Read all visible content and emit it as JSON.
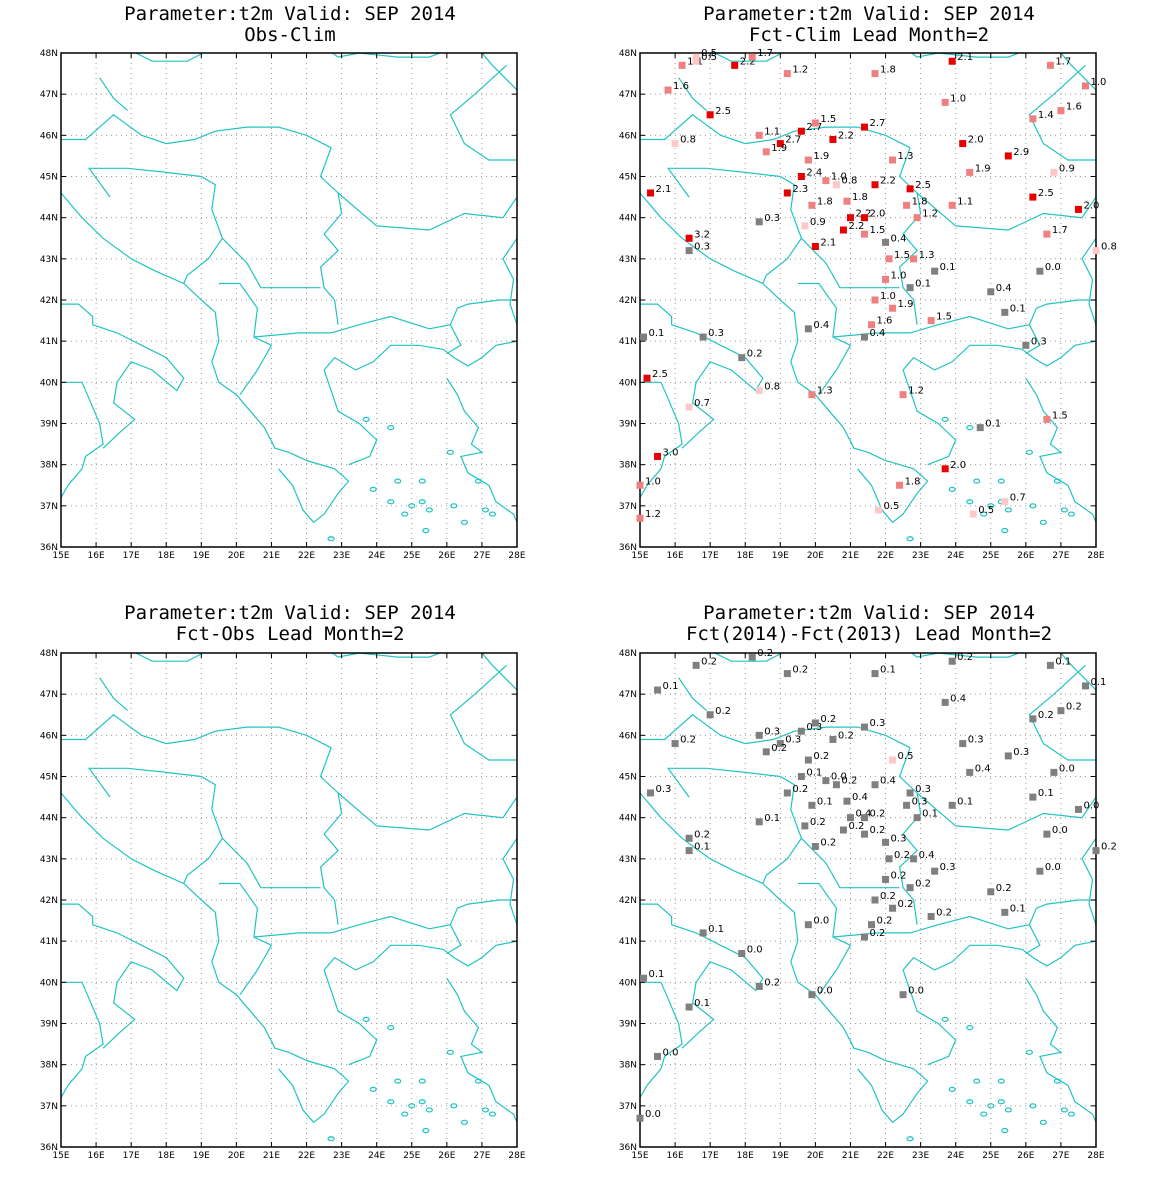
{
  "axes": {
    "lon_labels": [
      "15E",
      "16E",
      "17E",
      "18E",
      "19E",
      "20E",
      "21E",
      "22E",
      "23E",
      "24E",
      "25E",
      "26E",
      "27E",
      "28E"
    ],
    "lat_labels": [
      "36N",
      "37N",
      "38N",
      "39N",
      "40N",
      "41N",
      "42N",
      "43N",
      "44N",
      "45N",
      "46N",
      "47N",
      "48N"
    ],
    "lon_range": [
      15,
      28
    ],
    "lat_range": [
      36,
      48
    ]
  },
  "colors": {
    "coast": "#22c3c3",
    "grid": "#9a9a9a",
    "neutral": "#7f7f7f",
    "warm": [
      "#ffc8c8",
      "#f08080",
      "#e80000"
    ],
    "cool": [
      "#c8c8ff",
      "#8080f0",
      "#0000e0"
    ]
  },
  "panels": [
    {
      "title1": "Parameter:t2m Valid: SEP 2014",
      "title2": "Obs-Clim",
      "stations": []
    },
    {
      "title1": "Parameter:t2m Valid: SEP 2014",
      "title2": "Fct-Clim Lead Month=2",
      "stations": [
        {
          "lon": 16.2,
          "lat": 47.7,
          "label": "1.1"
        },
        {
          "lon": 16.6,
          "lat": 47.8,
          "label": "0.5"
        },
        {
          "lon": 16.6,
          "lat": 47.9,
          "label": "0.5"
        },
        {
          "lon": 17.7,
          "lat": 47.7,
          "label": "2.2"
        },
        {
          "lon": 18.2,
          "lat": 47.9,
          "label": "1.7"
        },
        {
          "lon": 19.2,
          "lat": 47.5,
          "label": "1.2"
        },
        {
          "lon": 21.7,
          "lat": 47.5,
          "label": "1.8"
        },
        {
          "lon": 23.9,
          "lat": 47.8,
          "label": "2.1"
        },
        {
          "lon": 26.7,
          "lat": 47.7,
          "label": "1.7"
        },
        {
          "lon": 27.7,
          "lat": 47.2,
          "label": "1.0"
        },
        {
          "lon": 15.8,
          "lat": 47.1,
          "label": "1.6"
        },
        {
          "lon": 23.7,
          "lat": 46.8,
          "label": "1.0"
        },
        {
          "lon": 17.0,
          "lat": 46.5,
          "label": "2.5"
        },
        {
          "lon": 27.0,
          "lat": 46.6,
          "label": "1.6"
        },
        {
          "lon": 26.2,
          "lat": 46.4,
          "label": "1.4"
        },
        {
          "lon": 18.4,
          "lat": 46.0,
          "label": "1.1"
        },
        {
          "lon": 19.6,
          "lat": 46.1,
          "label": "2.7"
        },
        {
          "lon": 20.0,
          "lat": 46.3,
          "label": "1.5"
        },
        {
          "lon": 21.4,
          "lat": 46.2,
          "label": "2.7"
        },
        {
          "lon": 20.5,
          "lat": 45.9,
          "label": "2.2"
        },
        {
          "lon": 16.0,
          "lat": 45.8,
          "label": "0.8"
        },
        {
          "lon": 19.0,
          "lat": 45.8,
          "label": "2.7"
        },
        {
          "lon": 18.6,
          "lat": 45.6,
          "label": "1.9"
        },
        {
          "lon": 24.2,
          "lat": 45.8,
          "label": "2.0"
        },
        {
          "lon": 19.8,
          "lat": 45.4,
          "label": "1.9"
        },
        {
          "lon": 22.2,
          "lat": 45.4,
          "label": "1.3"
        },
        {
          "lon": 25.5,
          "lat": 45.5,
          "label": "2.9"
        },
        {
          "lon": 24.4,
          "lat": 45.1,
          "label": "1.9"
        },
        {
          "lon": 26.8,
          "lat": 45.1,
          "label": "0.9"
        },
        {
          "lon": 19.6,
          "lat": 45.0,
          "label": "2.4"
        },
        {
          "lon": 20.3,
          "lat": 44.9,
          "label": "1.0"
        },
        {
          "lon": 20.6,
          "lat": 44.8,
          "label": "0.8"
        },
        {
          "lon": 21.7,
          "lat": 44.8,
          "label": "2.2"
        },
        {
          "lon": 15.3,
          "lat": 44.6,
          "label": "2.1"
        },
        {
          "lon": 19.2,
          "lat": 44.6,
          "label": "2.3"
        },
        {
          "lon": 20.9,
          "lat": 44.4,
          "label": "1.8"
        },
        {
          "lon": 19.9,
          "lat": 44.3,
          "label": "1.8"
        },
        {
          "lon": 22.6,
          "lat": 44.3,
          "label": "1.8"
        },
        {
          "lon": 26.2,
          "lat": 44.5,
          "label": "2.5"
        },
        {
          "lon": 23.9,
          "lat": 44.3,
          "label": "1.1"
        },
        {
          "lon": 27.5,
          "lat": 44.2,
          "label": "2.0"
        },
        {
          "lon": 21.0,
          "lat": 44.0,
          "label": "2.2"
        },
        {
          "lon": 21.4,
          "lat": 44.0,
          "label": "2.0"
        },
        {
          "lon": 22.9,
          "lat": 44.0,
          "label": "1.2"
        },
        {
          "lon": 20.8,
          "lat": 43.7,
          "label": "2.2"
        },
        {
          "lon": 21.4,
          "lat": 43.6,
          "label": "1.5"
        },
        {
          "lon": 19.7,
          "lat": 43.8,
          "label": "0.9"
        },
        {
          "lon": 26.6,
          "lat": 43.6,
          "label": "1.7"
        },
        {
          "lon": 20.0,
          "lat": 43.3,
          "label": "2.1"
        },
        {
          "lon": 22.1,
          "lat": 43.0,
          "label": "1.5"
        },
        {
          "lon": 22.8,
          "lat": 43.0,
          "label": "1.3"
        },
        {
          "lon": 28.0,
          "lat": 43.2,
          "label": "0.8"
        },
        {
          "lon": 22.0,
          "lat": 42.5,
          "label": "1.0"
        },
        {
          "lon": 22.7,
          "lat": 44.7,
          "label": "2.5"
        },
        {
          "lon": 16.4,
          "lat": 43.5,
          "label": "3.2"
        },
        {
          "lon": 21.7,
          "lat": 42.0,
          "label": "1.0"
        },
        {
          "lon": 22.2,
          "lat": 41.8,
          "label": "1.9"
        },
        {
          "lon": 21.6,
          "lat": 41.4,
          "label": "1.6"
        },
        {
          "lon": 23.3,
          "lat": 41.5,
          "label": "1.5"
        },
        {
          "lon": 15.2,
          "lat": 40.1,
          "label": "2.5"
        },
        {
          "lon": 16.4,
          "lat": 39.4,
          "label": "0.7"
        },
        {
          "lon": 18.4,
          "lat": 39.8,
          "label": "0.8"
        },
        {
          "lon": 19.9,
          "lat": 39.7,
          "label": "1.3"
        },
        {
          "lon": 22.5,
          "lat": 39.7,
          "label": "1.2"
        },
        {
          "lon": 26.6,
          "lat": 39.1,
          "label": "1.5"
        },
        {
          "lon": 15.5,
          "lat": 38.2,
          "label": "3.0"
        },
        {
          "lon": 23.7,
          "lat": 37.9,
          "label": "2.0"
        },
        {
          "lon": 15.0,
          "lat": 37.5,
          "label": "1.0"
        },
        {
          "lon": 22.4,
          "lat": 37.5,
          "label": "1.8"
        },
        {
          "lon": 15.0,
          "lat": 36.7,
          "label": "1.2"
        },
        {
          "lon": 21.8,
          "lat": 36.9,
          "label": "0.5"
        },
        {
          "lon": 24.5,
          "lat": 36.8,
          "label": "0.5"
        },
        {
          "lon": 25.4,
          "lat": 37.1,
          "label": "0.7"
        },
        {
          "lon": 18.4,
          "lat": 43.9,
          "label": "0.3"
        },
        {
          "lon": 16.4,
          "lat": 43.2,
          "label": "0.3"
        },
        {
          "lon": 22.0,
          "lat": 43.4,
          "label": "0.4"
        },
        {
          "lon": 23.4,
          "lat": 42.7,
          "label": "0.1"
        },
        {
          "lon": 26.4,
          "lat": 42.7,
          "label": "0.0"
        },
        {
          "lon": 22.7,
          "lat": 42.3,
          "label": "0.1"
        },
        {
          "lon": 25.0,
          "lat": 42.2,
          "label": "0.4"
        },
        {
          "lon": 25.4,
          "lat": 41.7,
          "label": "0.1"
        },
        {
          "lon": 19.8,
          "lat": 41.3,
          "label": "0.4"
        },
        {
          "lon": 21.4,
          "lat": 41.1,
          "label": "0.4"
        },
        {
          "lon": 15.1,
          "lat": 41.1,
          "label": "0.1"
        },
        {
          "lon": 16.8,
          "lat": 41.1,
          "label": "0.3"
        },
        {
          "lon": 17.9,
          "lat": 40.6,
          "label": "0.2"
        },
        {
          "lon": 26.0,
          "lat": 40.9,
          "label": "0.3"
        },
        {
          "lon": 24.7,
          "lat": 38.9,
          "label": "0.1"
        }
      ]
    },
    {
      "title1": "Parameter:t2m Valid: SEP 2014",
      "title2": "Fct-Obs Lead Month=2",
      "stations": []
    },
    {
      "title1": "Parameter:t2m Valid: SEP 2014",
      "title2": "Fct(2014)-Fct(2013) Lead Month=2",
      "stations": [
        {
          "lon": 16.6,
          "lat": 47.7,
          "label": "0.2"
        },
        {
          "lon": 18.2,
          "lat": 47.9,
          "label": "0.2"
        },
        {
          "lon": 19.2,
          "lat": 47.5,
          "label": "0.2"
        },
        {
          "lon": 21.7,
          "lat": 47.5,
          "label": "0.1"
        },
        {
          "lon": 23.9,
          "lat": 47.8,
          "label": "0.2"
        },
        {
          "lon": 26.7,
          "lat": 47.7,
          "label": "0.1"
        },
        {
          "lon": 27.7,
          "lat": 47.2,
          "label": "0.1"
        },
        {
          "lon": 15.5,
          "lat": 47.1,
          "label": "0.1"
        },
        {
          "lon": 23.7,
          "lat": 46.8,
          "label": "0.4"
        },
        {
          "lon": 17.0,
          "lat": 46.5,
          "label": "0.2"
        },
        {
          "lon": 26.2,
          "lat": 46.4,
          "label": "0.2"
        },
        {
          "lon": 27.0,
          "lat": 46.6,
          "label": "0.2"
        },
        {
          "lon": 18.4,
          "lat": 46.0,
          "label": "0.3"
        },
        {
          "lon": 19.6,
          "lat": 46.1,
          "label": "0.3"
        },
        {
          "lon": 20.0,
          "lat": 46.3,
          "label": "0.2"
        },
        {
          "lon": 21.4,
          "lat": 46.2,
          "label": "0.3"
        },
        {
          "lon": 20.5,
          "lat": 45.9,
          "label": "0.2"
        },
        {
          "lon": 16.0,
          "lat": 45.8,
          "label": "0.2"
        },
        {
          "lon": 19.0,
          "lat": 45.8,
          "label": "0.3"
        },
        {
          "lon": 18.6,
          "lat": 45.6,
          "label": "0.2"
        },
        {
          "lon": 24.2,
          "lat": 45.8,
          "label": "0.3"
        },
        {
          "lon": 19.8,
          "lat": 45.4,
          "label": "0.2"
        },
        {
          "lon": 22.2,
          "lat": 45.4,
          "label": "0.5"
        },
        {
          "lon": 25.5,
          "lat": 45.5,
          "label": "0.3"
        },
        {
          "lon": 24.4,
          "lat": 45.1,
          "label": "0.4"
        },
        {
          "lon": 26.8,
          "lat": 45.1,
          "label": "0.0"
        },
        {
          "lon": 19.6,
          "lat": 45.0,
          "label": "0.1"
        },
        {
          "lon": 20.3,
          "lat": 44.9,
          "label": "0.0"
        },
        {
          "lon": 20.6,
          "lat": 44.8,
          "label": "0.2"
        },
        {
          "lon": 21.7,
          "lat": 44.8,
          "label": "0.4"
        },
        {
          "lon": 22.7,
          "lat": 44.6,
          "label": "0.3"
        },
        {
          "lon": 15.3,
          "lat": 44.6,
          "label": "0.3"
        },
        {
          "lon": 19.2,
          "lat": 44.6,
          "label": "0.2"
        },
        {
          "lon": 20.9,
          "lat": 44.4,
          "label": "0.4"
        },
        {
          "lon": 19.9,
          "lat": 44.3,
          "label": "0.1"
        },
        {
          "lon": 22.6,
          "lat": 44.3,
          "label": "0.3"
        },
        {
          "lon": 26.2,
          "lat": 44.5,
          "label": "0.1"
        },
        {
          "lon": 23.9,
          "lat": 44.3,
          "label": "0.1"
        },
        {
          "lon": 27.5,
          "lat": 44.2,
          "label": "0.0"
        },
        {
          "lon": 21.0,
          "lat": 44.0,
          "label": "0.4"
        },
        {
          "lon": 21.4,
          "lat": 44.0,
          "label": "0.2"
        },
        {
          "lon": 22.9,
          "lat": 44.0,
          "label": "0.1"
        },
        {
          "lon": 18.4,
          "lat": 43.9,
          "label": "0.1"
        },
        {
          "lon": 19.7,
          "lat": 43.8,
          "label": "0.2"
        },
        {
          "lon": 20.8,
          "lat": 43.7,
          "label": "0.2"
        },
        {
          "lon": 21.4,
          "lat": 43.6,
          "label": "0.2"
        },
        {
          "lon": 16.4,
          "lat": 43.5,
          "label": "0.2"
        },
        {
          "lon": 26.6,
          "lat": 43.6,
          "label": "0.0"
        },
        {
          "lon": 22.0,
          "lat": 43.4,
          "label": "0.3"
        },
        {
          "lon": 16.4,
          "lat": 43.2,
          "label": "0.1"
        },
        {
          "lon": 20.0,
          "lat": 43.3,
          "label": "0.2"
        },
        {
          "lon": 28.0,
          "lat": 43.2,
          "label": "0.2"
        },
        {
          "lon": 22.1,
          "lat": 43.0,
          "label": "0.2"
        },
        {
          "lon": 22.8,
          "lat": 43.0,
          "label": "0.4"
        },
        {
          "lon": 26.4,
          "lat": 42.7,
          "label": "0.0"
        },
        {
          "lon": 23.4,
          "lat": 42.7,
          "label": "0.3"
        },
        {
          "lon": 22.0,
          "lat": 42.5,
          "label": "0.2"
        },
        {
          "lon": 22.7,
          "lat": 42.3,
          "label": "0.2"
        },
        {
          "lon": 25.0,
          "lat": 42.2,
          "label": "0.2"
        },
        {
          "lon": 21.7,
          "lat": 42.0,
          "label": "0.2"
        },
        {
          "lon": 22.2,
          "lat": 41.8,
          "label": "0.2"
        },
        {
          "lon": 25.4,
          "lat": 41.7,
          "label": "0.1"
        },
        {
          "lon": 23.3,
          "lat": 41.6,
          "label": "0.2"
        },
        {
          "lon": 19.8,
          "lat": 41.4,
          "label": "0.0"
        },
        {
          "lon": 21.6,
          "lat": 41.4,
          "label": "0.2"
        },
        {
          "lon": 21.4,
          "lat": 41.1,
          "label": "0.2"
        },
        {
          "lon": 16.8,
          "lat": 41.2,
          "label": "0.1"
        },
        {
          "lon": 17.9,
          "lat": 40.7,
          "label": "0.0"
        },
        {
          "lon": 15.1,
          "lat": 40.1,
          "label": "0.1"
        },
        {
          "lon": 18.4,
          "lat": 39.9,
          "label": "0.2"
        },
        {
          "lon": 19.9,
          "lat": 39.7,
          "label": "0.0"
        },
        {
          "lon": 22.5,
          "lat": 39.7,
          "label": "0.0"
        },
        {
          "lon": 16.4,
          "lat": 39.4,
          "label": "0.1"
        },
        {
          "lon": 15.5,
          "lat": 38.2,
          "label": "0.0"
        },
        {
          "lon": 15.0,
          "lat": 36.7,
          "label": "0.0"
        }
      ]
    }
  ]
}
